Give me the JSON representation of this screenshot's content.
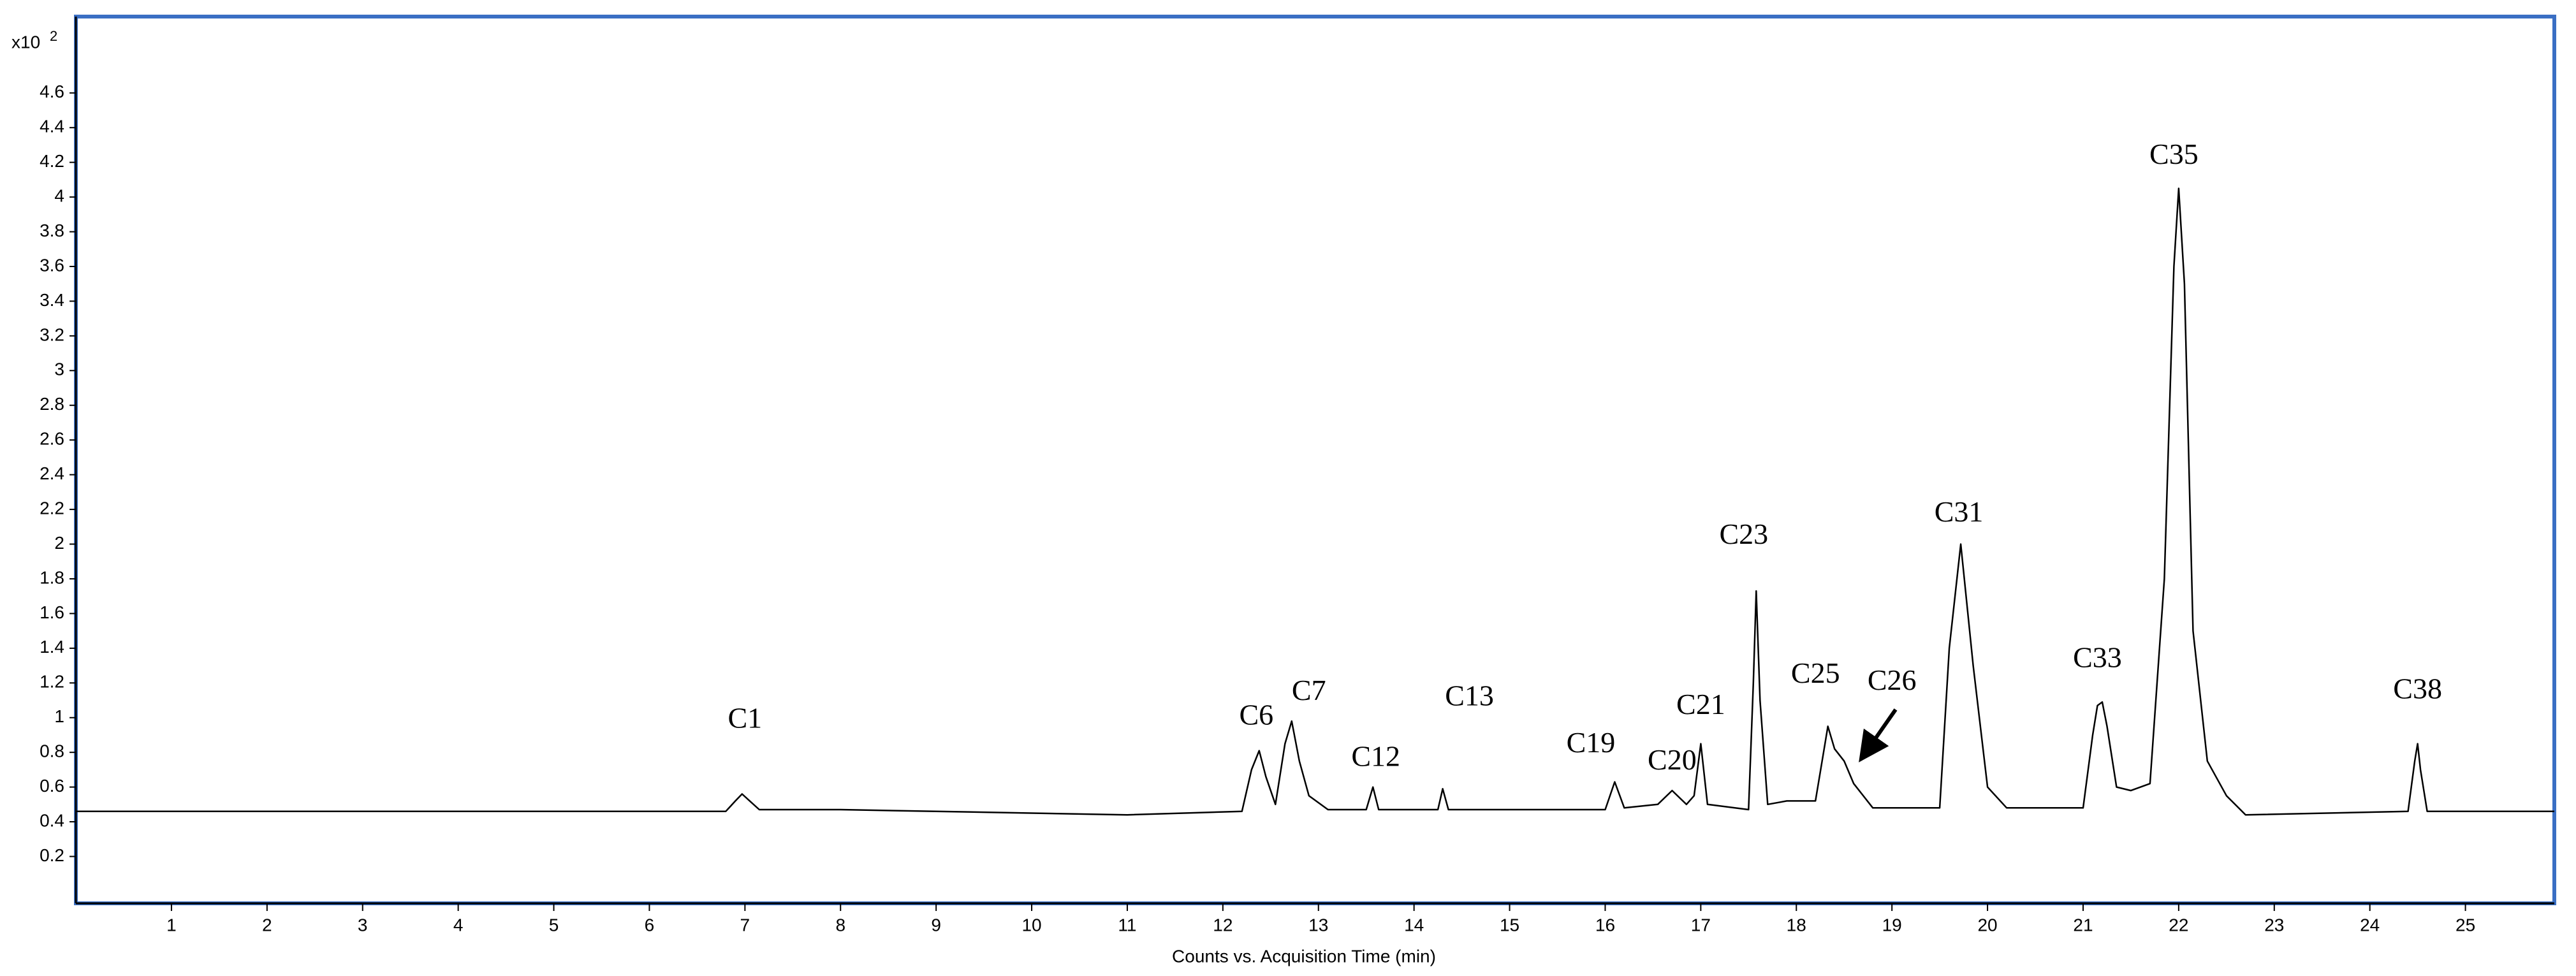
{
  "chart_data": {
    "type": "line",
    "y_multiplier": "x10",
    "y_multiplier_exponent": "2",
    "xlabel": "Counts vs. Acquisition Time (min)",
    "xlim": [
      0,
      25.93
    ],
    "ylim": [
      -0.07,
      5.04
    ],
    "xticks": [
      1,
      2,
      3,
      4,
      5,
      6,
      7,
      8,
      9,
      10,
      11,
      12,
      13,
      14,
      15,
      16,
      17,
      18,
      19,
      20,
      21,
      22,
      23,
      24,
      25
    ],
    "yticks": [
      0.2,
      0.4,
      0.6,
      0.8,
      1,
      1.2,
      1.4,
      1.6,
      1.8,
      2,
      2.2,
      2.4,
      2.6,
      2.8,
      3,
      3.2,
      3.4,
      3.6,
      3.8,
      4,
      4.2,
      4.4,
      4.6
    ],
    "series": [
      {
        "color": "#000000",
        "x": [
          0,
          6.8,
          6.9,
          6.97,
          7.05,
          7.15,
          8,
          10,
          11,
          12.2,
          12.3,
          12.38,
          12.45,
          12.55,
          12.65,
          12.72,
          12.8,
          12.9,
          13.1,
          13.5,
          13.57,
          13.63,
          14.25,
          14.3,
          14.36,
          16.0,
          16.1,
          16.2,
          16.55,
          16.7,
          16.85,
          16.93,
          17.0,
          17.07,
          17.5,
          17.55,
          17.58,
          17.62,
          17.7,
          17.9,
          18.2,
          18.3,
          18.33,
          18.4,
          18.5,
          18.6,
          18.8,
          19.5,
          19.6,
          19.72,
          19.85,
          20.0,
          20.2,
          21.0,
          21.1,
          21.15,
          21.2,
          21.25,
          21.35,
          21.5,
          21.7,
          21.85,
          21.95,
          22.0,
          22.06,
          22.15,
          22.3,
          22.5,
          22.7,
          24.4,
          24.47,
          24.5,
          24.53,
          24.6,
          25.93
        ],
        "values": [
          0.46,
          0.46,
          0.52,
          0.56,
          0.52,
          0.47,
          0.47,
          0.45,
          0.44,
          0.46,
          0.7,
          0.81,
          0.66,
          0.5,
          0.85,
          0.98,
          0.75,
          0.55,
          0.47,
          0.47,
          0.6,
          0.47,
          0.47,
          0.59,
          0.47,
          0.47,
          0.63,
          0.48,
          0.5,
          0.58,
          0.5,
          0.55,
          0.85,
          0.5,
          0.47,
          1.2,
          1.73,
          1.1,
          0.5,
          0.52,
          0.52,
          0.85,
          0.95,
          0.82,
          0.75,
          0.62,
          0.48,
          0.48,
          1.4,
          2.0,
          1.3,
          0.6,
          0.48,
          0.48,
          0.9,
          1.07,
          1.09,
          0.95,
          0.6,
          0.58,
          0.62,
          1.8,
          3.6,
          4.05,
          3.5,
          1.5,
          0.75,
          0.55,
          0.44,
          0.46,
          0.75,
          0.85,
          0.7,
          0.46,
          0.46
        ]
      }
    ],
    "annotations": [
      {
        "text": "C1",
        "x": 7.0,
        "y": 0.98
      },
      {
        "text": "C6",
        "x": 12.35,
        "y": 1.0
      },
      {
        "text": "C7",
        "x": 12.9,
        "y": 1.14
      },
      {
        "text": "C12",
        "x": 13.6,
        "y": 0.76
      },
      {
        "text": "C13",
        "x": 14.58,
        "y": 1.11
      },
      {
        "text": "C19",
        "x": 15.85,
        "y": 0.84
      },
      {
        "text": "C20",
        "x": 16.7,
        "y": 0.74
      },
      {
        "text": "C21",
        "x": 17.0,
        "y": 1.06
      },
      {
        "text": "C23",
        "x": 17.45,
        "y": 2.04
      },
      {
        "text": "C25",
        "x": 18.2,
        "y": 1.24
      },
      {
        "text": "C26",
        "x": 19.0,
        "y": 1.2
      },
      {
        "text": "C31",
        "x": 19.7,
        "y": 2.17
      },
      {
        "text": "C33",
        "x": 21.15,
        "y": 1.33
      },
      {
        "text": "C35",
        "x": 21.95,
        "y": 4.23
      },
      {
        "text": "C38",
        "x": 24.5,
        "y": 1.15
      }
    ]
  }
}
